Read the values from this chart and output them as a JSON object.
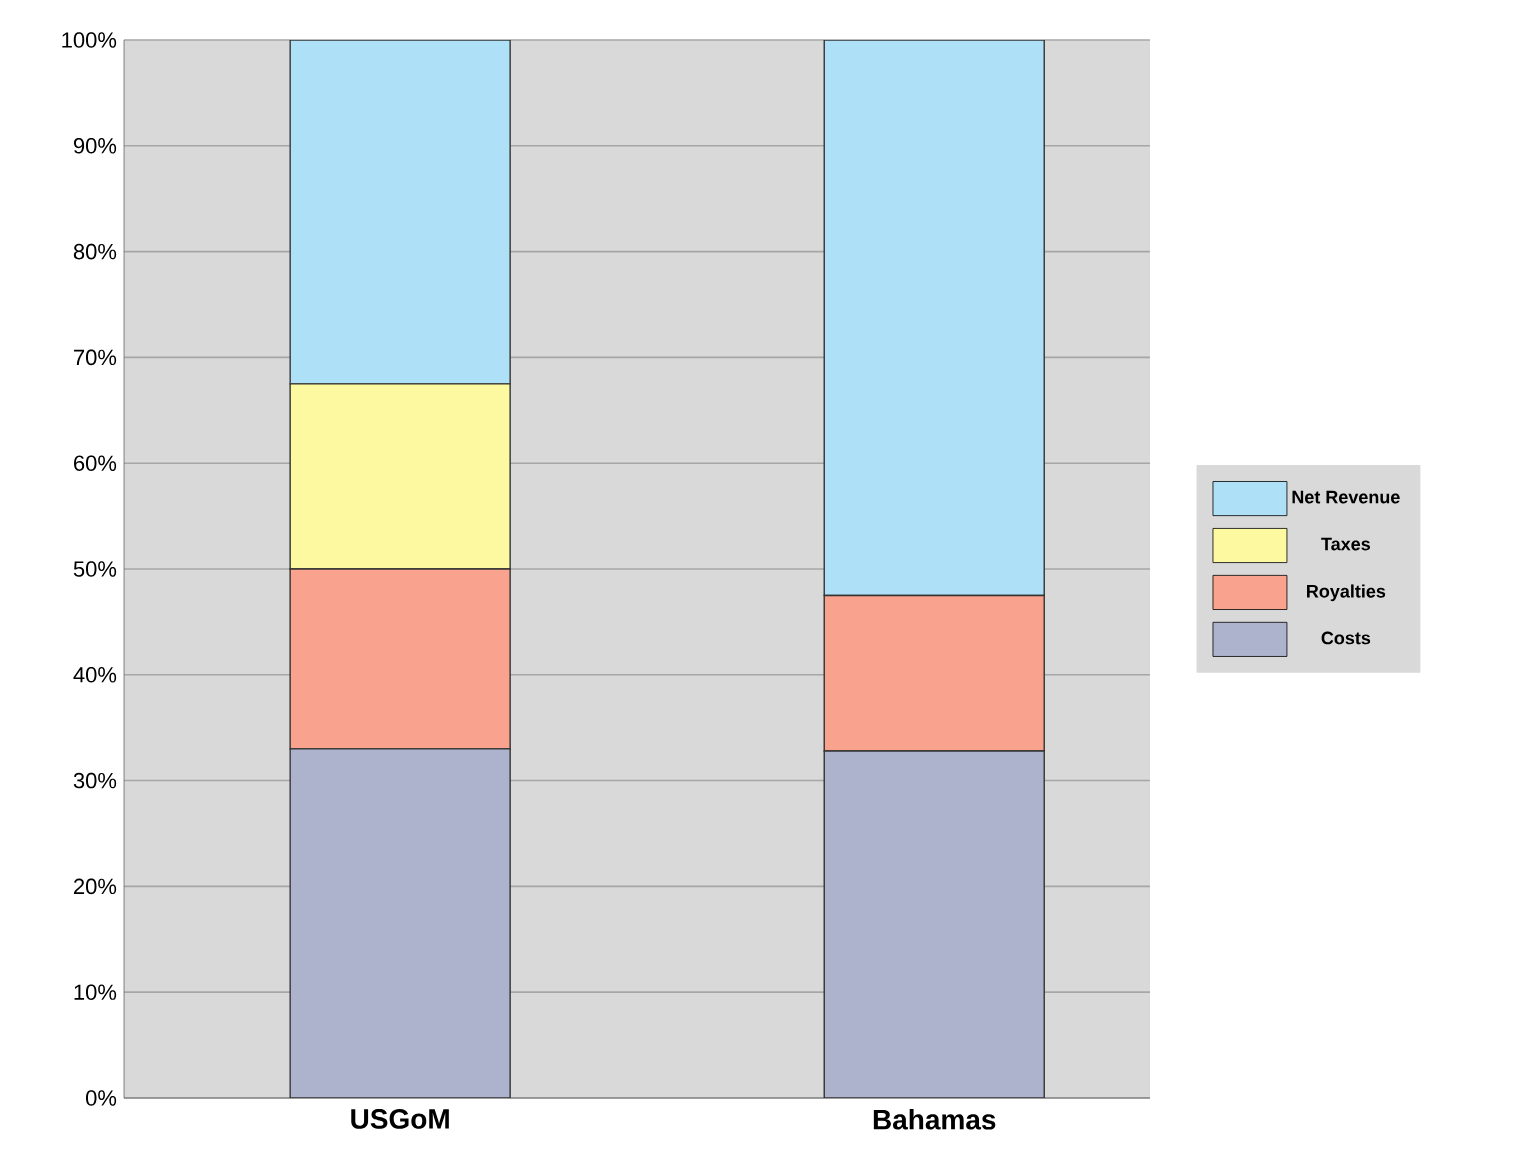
{
  "chart_data": {
    "type": "bar",
    "stacked": true,
    "categories": [
      "USGoM",
      "Bahamas"
    ],
    "series": [
      {
        "name": "Costs",
        "color": "#adb3cc",
        "values": [
          33,
          32.8
        ]
      },
      {
        "name": "Royalties",
        "color": "#f9a38e",
        "values": [
          17,
          14.7
        ]
      },
      {
        "name": "Taxes",
        "color": "#fdf9a1",
        "values": [
          17.5,
          0
        ]
      },
      {
        "name": "Net Revenue",
        "color": "#aee0f7",
        "values": [
          32.5,
          52.5
        ]
      }
    ],
    "ylim": [
      0,
      100
    ],
    "yticks": [
      {
        "value": 0,
        "label": "0%"
      },
      {
        "value": 10,
        "label": "10%"
      },
      {
        "value": 20,
        "label": "20%"
      },
      {
        "value": 30,
        "label": "30%"
      },
      {
        "value": 40,
        "label": "40%"
      },
      {
        "value": 50,
        "label": "50%"
      },
      {
        "value": 60,
        "label": "60%"
      },
      {
        "value": 70,
        "label": "70%"
      },
      {
        "value": 80,
        "label": "80%"
      },
      {
        "value": 90,
        "label": "90%"
      },
      {
        "value": 100,
        "label": "100%"
      }
    ],
    "grid": "y",
    "legend": "right"
  }
}
